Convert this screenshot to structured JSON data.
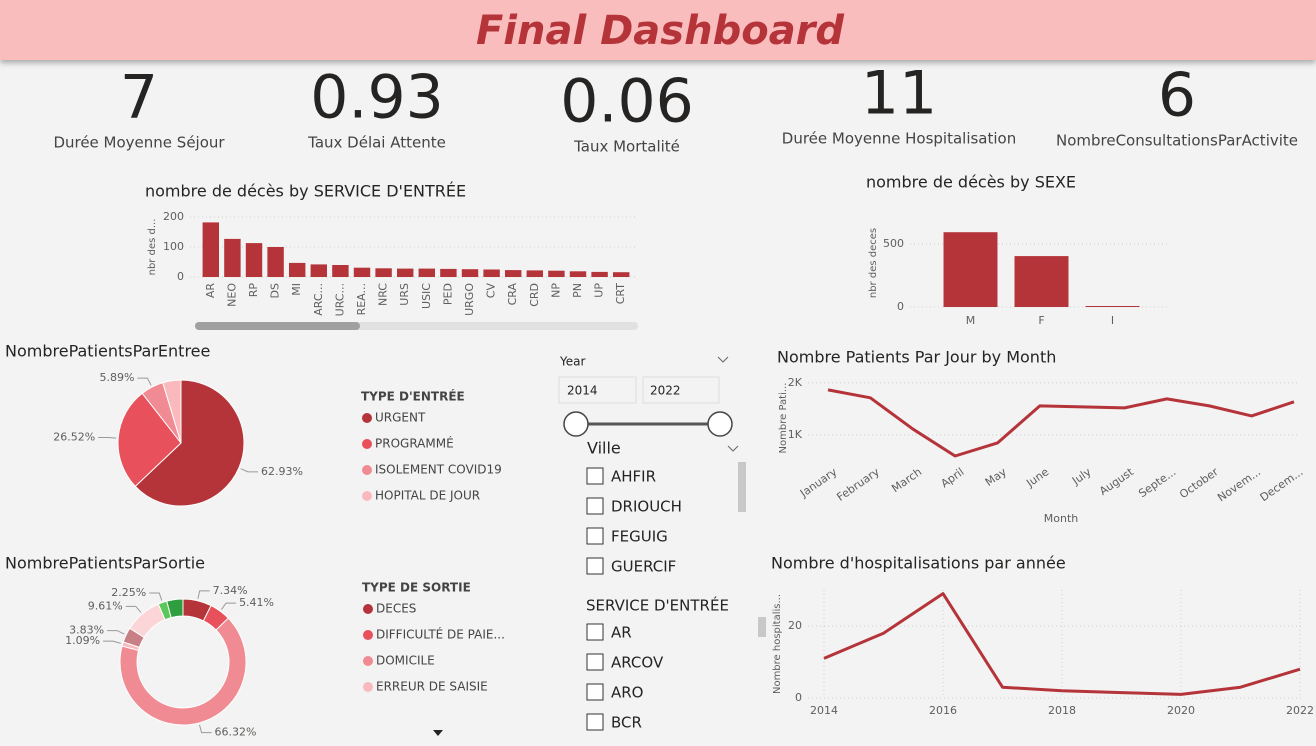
{
  "header": {
    "title": "Final Dashboard"
  },
  "kpis": [
    {
      "value": 7,
      "label": "Durée Moyenne Séjour"
    },
    {
      "value": 0.93,
      "label": "Taux Délai Attente"
    },
    {
      "value": 0.06,
      "label": "Taux Mortalité"
    },
    {
      "value": 11,
      "label": "Durée Moyenne Hospitalisation"
    },
    {
      "value": 6,
      "label": "NombreConsultationsParActivite"
    }
  ],
  "chart_data": [
    {
      "type": "bar",
      "title": "nombre de décès by SERVICE D'ENTRÉE",
      "ylabel": "nbr des d...",
      "categories": [
        "AR",
        "NEO",
        "RP",
        "DS",
        "MI",
        "ARC...",
        "URC...",
        "REA...",
        "NRC",
        "URS",
        "USIC",
        "PED",
        "URGO",
        "CV",
        "CRA",
        "CRD",
        "NP",
        "PN",
        "UP",
        "CRT"
      ],
      "values": [
        182,
        127,
        113,
        100,
        47,
        42,
        40,
        31,
        29,
        28,
        28,
        27,
        26,
        25,
        23,
        22,
        21,
        19,
        17,
        16
      ],
      "color": "#b5343a",
      "ylim": [
        0,
        200
      ],
      "yticks": [
        0,
        100,
        200
      ],
      "grid": true
    },
    {
      "type": "bar",
      "title": "nombre de décès by SEXE",
      "ylabel": "nbr des deces",
      "categories": [
        "M",
        "F",
        "I"
      ],
      "values": [
        595,
        405,
        8
      ],
      "color": "#b5343a",
      "ylim": [
        0,
        700
      ],
      "yticks": [
        0,
        500
      ],
      "grid": true
    },
    {
      "type": "pie",
      "title": "NombrePatientsParEntree",
      "legend_title": "TYPE D'ENTRÉE",
      "categories": [
        "URGENT",
        "PROGRAMMÉ",
        "ISOLEMENT COVID19",
        "HOPITAL DE JOUR"
      ],
      "values": [
        62.93,
        26.52,
        5.89,
        4.66
      ],
      "value_labels": [
        "62.93%",
        "26.52%",
        "5.89%",
        null
      ],
      "colors": [
        "#b5343a",
        "#e8505b",
        "#f08a93",
        "#f9b9bd"
      ]
    },
    {
      "type": "donut",
      "title": "NombrePatientsParSortie",
      "legend_title": "TYPE DE SORTIE",
      "categories": [
        "DECES",
        "DIFFICULTÉ DE PAIE...",
        "DOMICILE",
        "ERREUR DE SAISIE",
        null,
        null,
        null,
        null
      ],
      "values": [
        7.34,
        5.41,
        66.32,
        1.09,
        3.83,
        9.61,
        2.25,
        4.15
      ],
      "value_labels": [
        "7.34%",
        "5.41%",
        "66.32%",
        "1.09%",
        "3.83%",
        "9.61%",
        "2.25%",
        null
      ],
      "colors": [
        "#b5343a",
        "#e8505b",
        "#f08a93",
        "#f9b9bd",
        "#c97f86",
        "#fcd5d8",
        "#5cc85c",
        "#2e9e3e"
      ]
    },
    {
      "type": "line",
      "title": "Nombre Patients Par Jour by Month",
      "ylabel": "Nombre Pati...",
      "xlabel": "Month",
      "categories": [
        "January",
        "February",
        "March",
        "April",
        "May",
        "June",
        "July",
        "August",
        "Septe...",
        "October",
        "Novem...",
        "Decem..."
      ],
      "values": [
        1865,
        1712,
        1115,
        596,
        846,
        1558,
        1538,
        1519,
        1692,
        1558,
        1365,
        1635
      ],
      "color": "#b5343a",
      "ylim": [
        500,
        2150
      ],
      "yticks": [
        {
          "value": 1000,
          "label": "1K"
        },
        {
          "value": 2000,
          "label": "2K"
        }
      ],
      "grid": true
    },
    {
      "type": "line",
      "title": "Nombre d'hospitalisations par année",
      "ylabel": "Nombre hospitalis...",
      "x": [
        2014,
        2015,
        2016,
        2017,
        2018,
        2019,
        2020,
        2021,
        2022
      ],
      "values": [
        11,
        18,
        29,
        3,
        2,
        1.5,
        1,
        3,
        8
      ],
      "color": "#b5343a",
      "xlim": [
        2014,
        2022
      ],
      "xticks": [
        2014,
        2016,
        2018,
        2020,
        2022
      ],
      "ylim": [
        0,
        30
      ],
      "yticks": [
        0,
        20
      ],
      "grid": true
    }
  ],
  "slicers": {
    "year": {
      "title": "Year",
      "from": 2014,
      "to": 2022
    },
    "ville": {
      "title": "Ville",
      "items": [
        "AHFIR",
        "DRIOUCH",
        "FEGUIG",
        "GUERCIF"
      ]
    },
    "service": {
      "title": "SERVICE D'ENTRÉE",
      "items": [
        "AR",
        "ARCOV",
        "ARO",
        "BCR"
      ]
    }
  }
}
